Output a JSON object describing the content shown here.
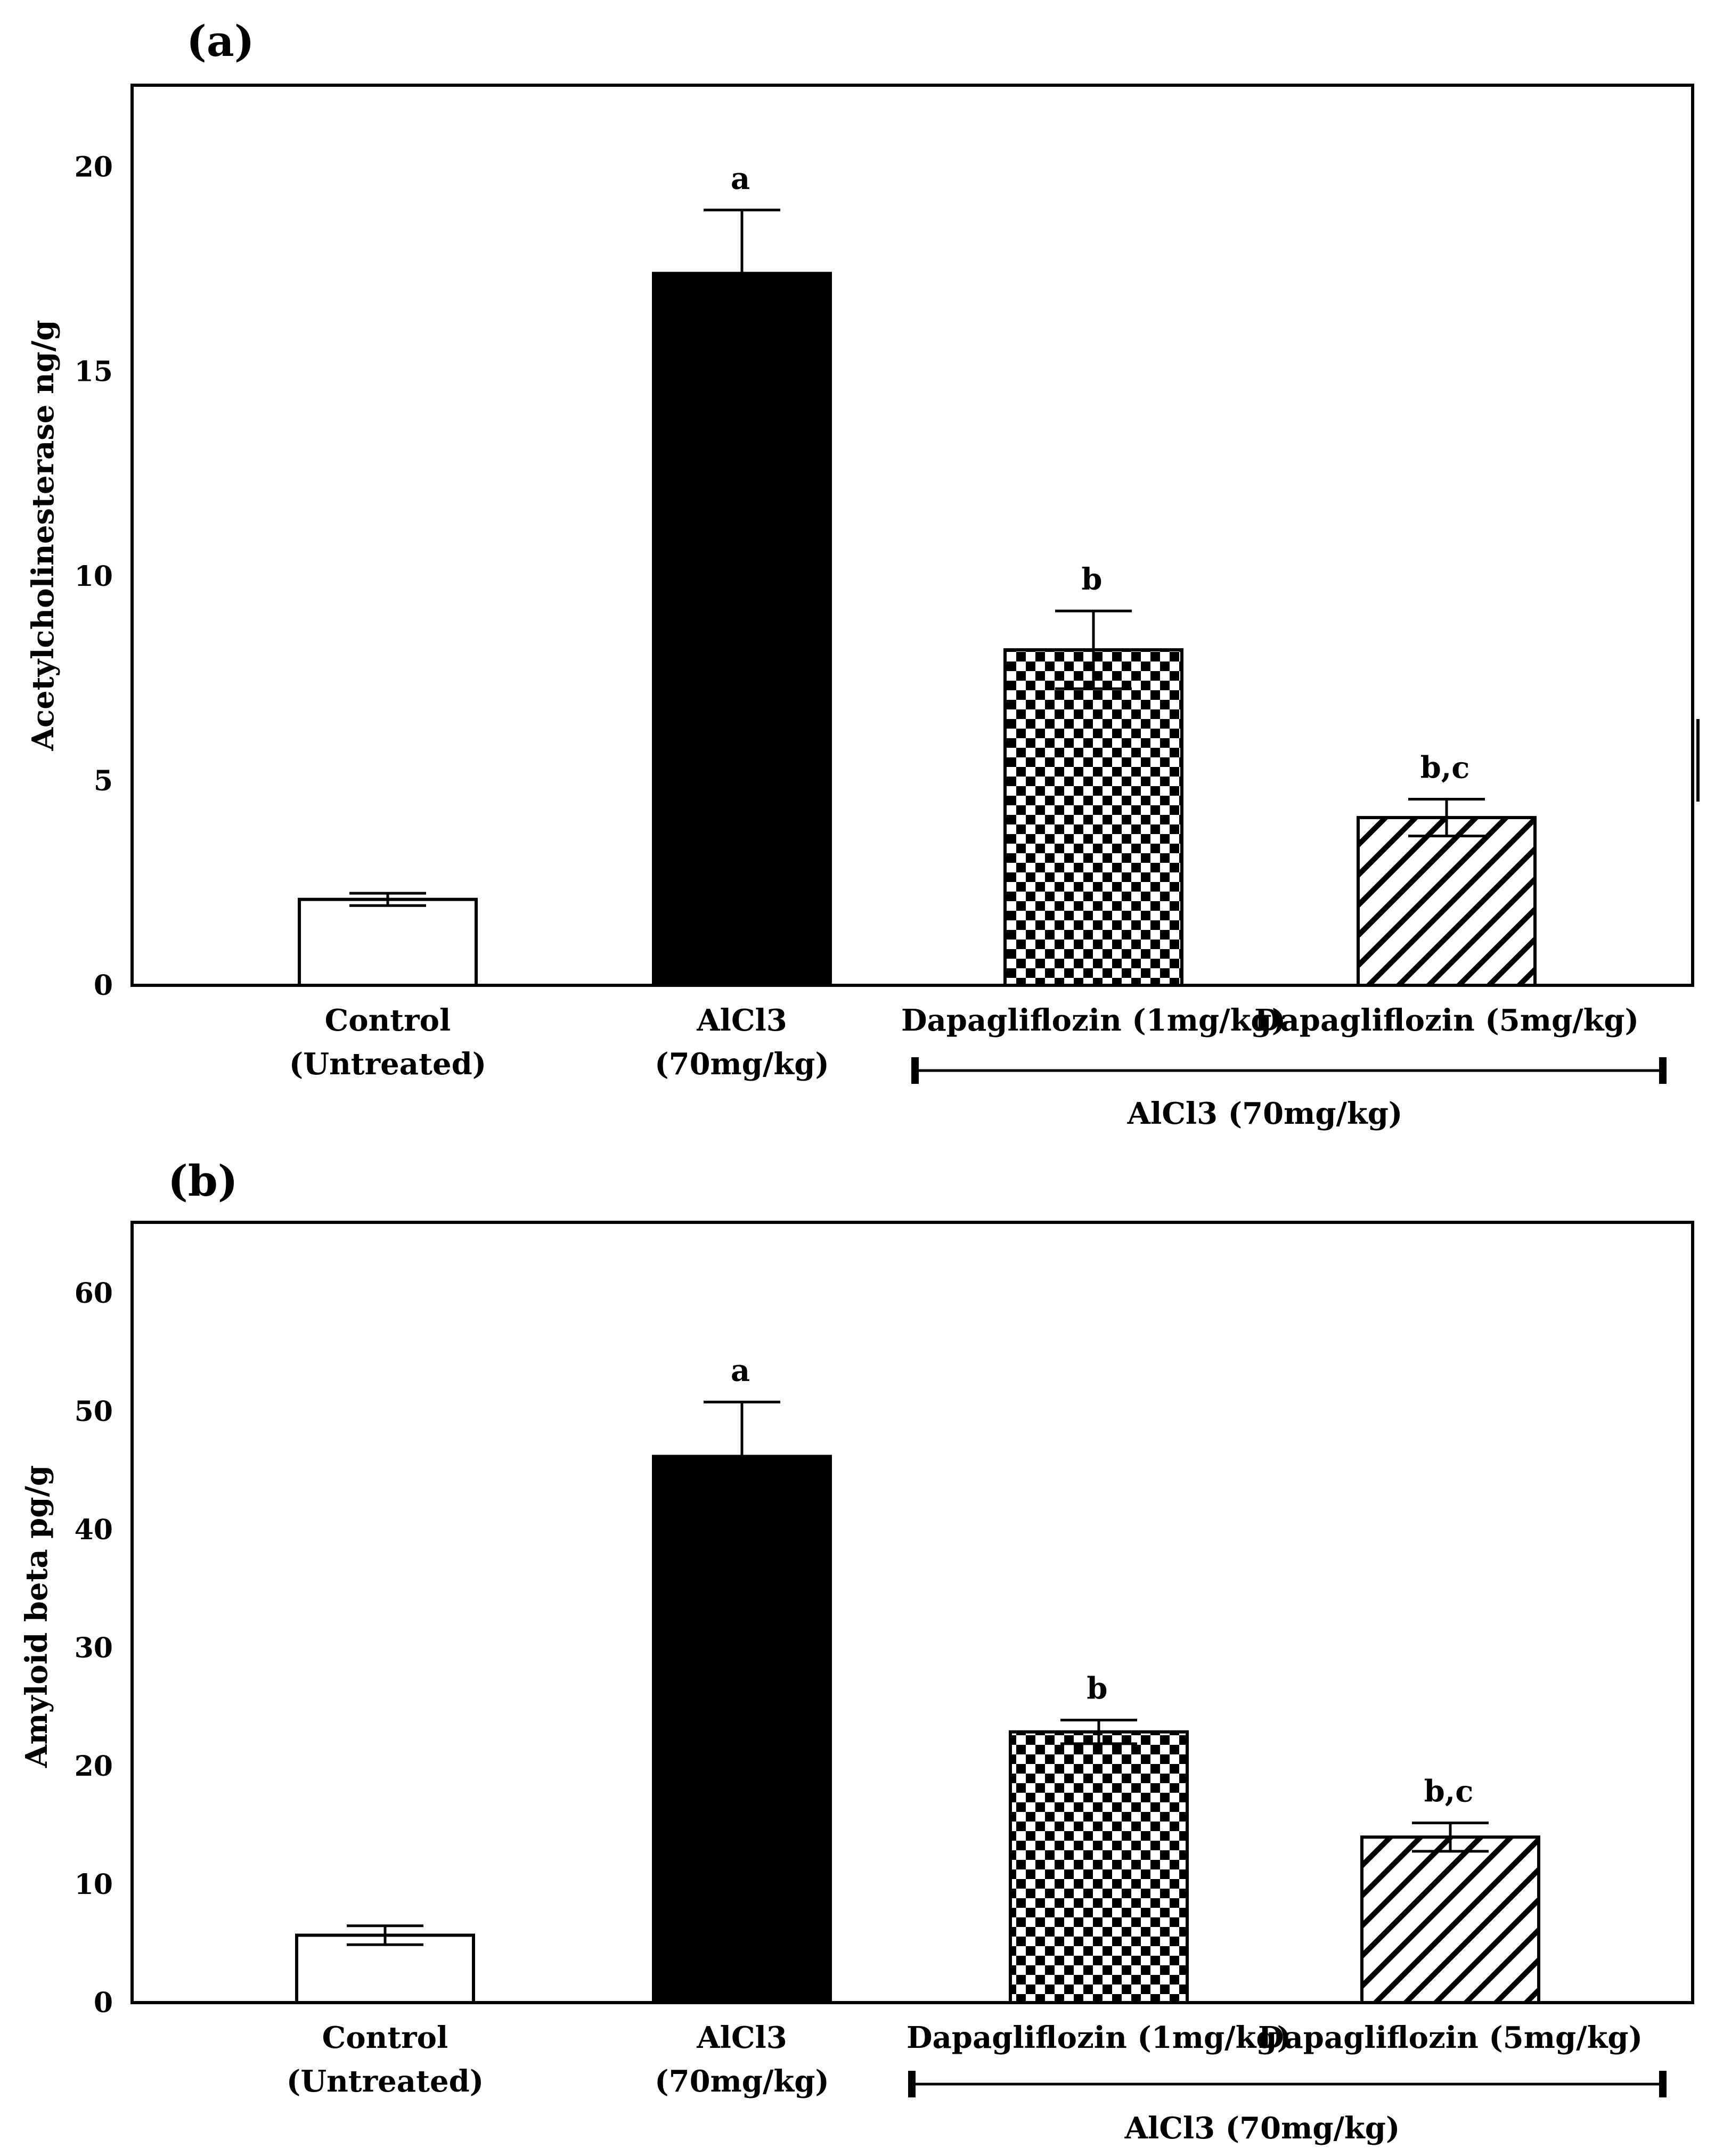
{
  "chart_data": [
    {
      "panel": "(a)",
      "type": "bar",
      "ylabel": "Acetylcholinesterase ng/g",
      "ylim": [
        0,
        22
      ],
      "yticks": [
        0,
        5,
        10,
        15,
        20
      ],
      "categories": [
        [
          "Control",
          "(Untreated)"
        ],
        [
          "AlCl3",
          "(70mg/kg)"
        ],
        [
          "Dapagliflozin (1mg/kg)"
        ],
        [
          "Dapagliflozin (5mg/kg)"
        ]
      ],
      "values": [
        2.1,
        17.4,
        8.2,
        4.1
      ],
      "errors": [
        0.15,
        1.55,
        0.95,
        0.45
      ],
      "significance": [
        "",
        "a",
        "b",
        "b,c"
      ],
      "fills": [
        "white",
        "black",
        "checker",
        "hatch"
      ],
      "group_label": "AlCl3 (70mg/kg)"
    },
    {
      "panel": "(b)",
      "type": "bar",
      "ylabel": "Amyloid beta pg/g",
      "ylim": [
        0,
        66
      ],
      "yticks": [
        0,
        10,
        20,
        30,
        40,
        50,
        60
      ],
      "categories": [
        [
          "Control",
          "(Untreated)"
        ],
        [
          "AlCl3",
          "(70mg/kg)"
        ],
        [
          "Dapagliflozin (1mg/kg)"
        ],
        [
          "Dapagliflozin (5mg/kg)"
        ]
      ],
      "values": [
        5.7,
        46.2,
        22.9,
        14.0
      ],
      "errors": [
        0.8,
        4.6,
        1.0,
        1.2
      ],
      "significance": [
        "",
        "a",
        "b",
        "b,c"
      ],
      "fills": [
        "white",
        "black",
        "checker",
        "hatch"
      ],
      "group_label": "AlCl3 (70mg/kg)"
    }
  ]
}
